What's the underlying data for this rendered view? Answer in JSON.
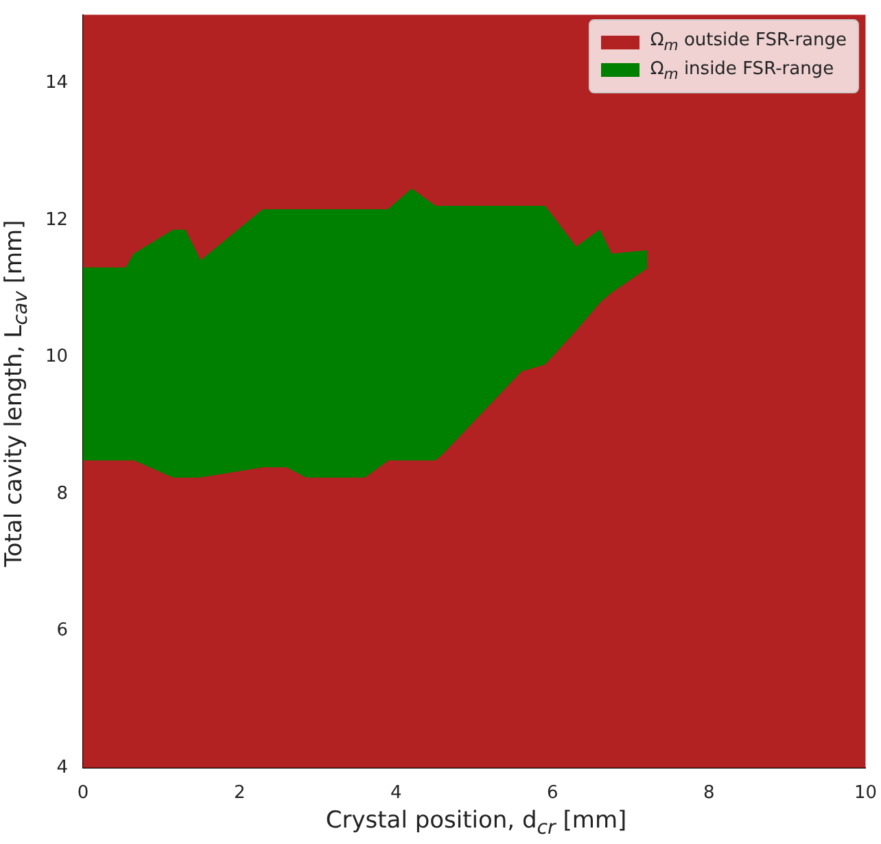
{
  "chart_data": {
    "type": "area",
    "xlabel": "Crystal position, d$_{cr}$ [mm]",
    "ylabel": "Total cavity length, L$_{cav}$ [mm]",
    "xlim": [
      0,
      10
    ],
    "xticks": [
      0,
      2,
      4,
      6,
      8,
      10
    ],
    "ylim": [
      4,
      15
    ],
    "yticks": [
      4,
      6,
      8,
      10,
      12,
      14
    ],
    "grid": false,
    "legend": "top right",
    "bands": [
      {
        "axis": "y",
        "from": 4,
        "to": 15,
        "label": "Ω$_{m}$ outside FSR-range",
        "color": "#b22222"
      }
    ],
    "series": [
      {
        "name": "Ω$_{m}$ inside FSR-range",
        "color": "#008000",
        "x": [
          0,
          0.55,
          0.65,
          1.15,
          1.3,
          1.5,
          2.3,
          2.6,
          2.85,
          3.6,
          3.9,
          4.2,
          4.5,
          4.6,
          5.6,
          5.9,
          6.3,
          6.6,
          6.75,
          7.2,
          7.2,
          6.75,
          6.6,
          6.3,
          5.9,
          5.6,
          4.6,
          4.5,
          4.2,
          3.9,
          3.6,
          2.85,
          2.6,
          2.3,
          1.5,
          1.3,
          1.15,
          0.65,
          0.55,
          0
        ],
        "values": [
          11.3,
          11.3,
          11.5,
          11.85,
          11.85,
          11.4,
          12.15,
          12.15,
          12.15,
          12.15,
          12.15,
          12.45,
          12.2,
          12.2,
          12.2,
          12.2,
          11.6,
          11.85,
          11.5,
          11.55,
          11.3,
          10.95,
          10.8,
          10.4,
          9.9,
          9.8,
          8.6,
          8.5,
          8.5,
          8.5,
          8.25,
          8.25,
          8.4,
          8.4,
          8.25,
          8.25,
          8.25,
          8.5,
          8.5,
          8.5
        ]
      }
    ]
  }
}
